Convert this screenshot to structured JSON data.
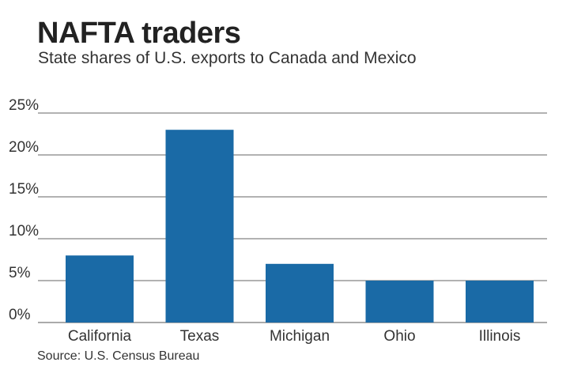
{
  "title": "NAFTA traders",
  "subtitle": "State shares of U.S. exports to Canada and Mexico",
  "source": "Source: U.S. Census Bureau",
  "colors": {
    "bar": "#1a6aa6",
    "grid": "#666666",
    "axis": "#555555"
  },
  "chart_data": {
    "type": "bar",
    "title": "NAFTA traders",
    "subtitle": "State shares of U.S. exports to Canada and Mexico",
    "xlabel": "",
    "ylabel": "",
    "categories": [
      "California",
      "Texas",
      "Michigan",
      "Ohio",
      "Illinois"
    ],
    "values": [
      8,
      23,
      7,
      5,
      5
    ],
    "ylim": [
      0,
      25
    ],
    "yticks": [
      0,
      5,
      10,
      15,
      20,
      25
    ],
    "ytick_labels": [
      "0%",
      "5%",
      "10%",
      "15%",
      "20%",
      "25%"
    ],
    "grid": true,
    "legend": "none"
  }
}
